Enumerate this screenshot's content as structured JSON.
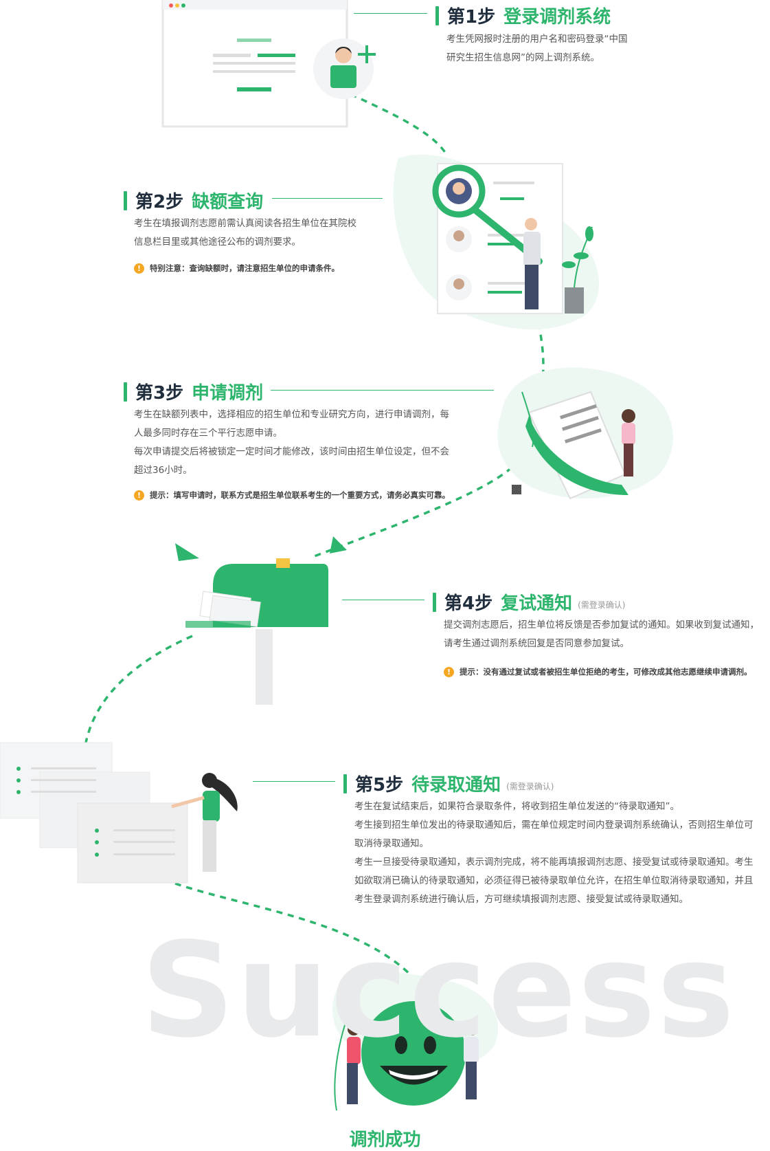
{
  "colors": {
    "accent": "#2eb56d",
    "title_dark": "#1f2d3d",
    "tip_icon": "#f5a623",
    "watermark": "#e9eaec"
  },
  "steps": [
    {
      "num": "第1步",
      "name": "登录调剂系统",
      "desc": [
        "考生凭网报时注册的用户名和密码登录“中国",
        "研究生招生信息网”的网上调剂系统。"
      ]
    },
    {
      "num": "第2步",
      "name": "缺额查询",
      "desc": [
        "考生在填报调剂志愿前需认真阅读各招生单位在其院校",
        "信息栏目里或其他途径公布的调剂要求。"
      ],
      "tip": "特别注意：查询缺额时，请注意招生单位的申请条件。"
    },
    {
      "num": "第3步",
      "name": "申请调剂",
      "desc": [
        "考生在缺额列表中，选择相应的招生单位和专业研究方向，进行申请调剂，每",
        "人最多同时存在三个平行志愿申请。",
        "每次申请提交后将被锁定一定时间才能修改，该时间由招生单位设定，但不会",
        "超过36小时。"
      ],
      "tip": "提示：填写申请时，联系方式是招生单位联系考生的一个重要方式，请务必真实可靠。"
    },
    {
      "num": "第4步",
      "name": "复试通知",
      "note": "(需登录确认)",
      "desc": [
        "提交调剂志愿后，招生单位将反馈是否参加复试的通知。如果收到复试通知，",
        "请考生通过调剂系统回复是否同意参加复试。"
      ],
      "tip": "提示：没有通过复试或者被招生单位拒绝的考生，可修改成其他志愿继续申请调剂。"
    },
    {
      "num": "第5步",
      "name": "待录取通知",
      "note": "(需登录确认)",
      "desc": [
        "考生在复试结束后，如果符合录取条件，将收到招生单位发送的“待录取通知”。",
        "考生接到招生单位发出的待录取通知后，需在单位规定时间内登录调剂系统确认，否则招生单位可",
        "取消待录取通知。",
        "考生一旦接受待录取通知，表示调剂完成，将不能再填报调剂志愿、接受复试或待录取通知。考生",
        "如欲取消已确认的待录取通知，必须征得已被待录取单位允许，在招生单位取消待录取通知，并且",
        "考生登录调剂系统进行确认后，方可继续填报调剂志愿、接受复试或待录取通知。"
      ]
    }
  ],
  "tip_icon_glyph": "!",
  "watermark": "Success",
  "final": "调剂成功"
}
